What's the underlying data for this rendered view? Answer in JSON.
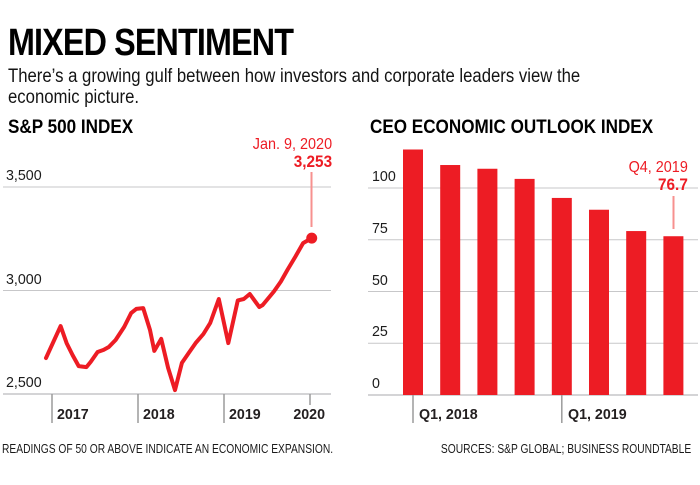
{
  "header": {
    "title": "MIXED SENTIMENT",
    "subtitle_line1": "There’s a growing gulf between how investors and corporate leaders view the",
    "subtitle_line2": "economic picture."
  },
  "footer": {
    "note": "READINGS OF 50 OR ABOVE INDICATE AN ECONOMIC EXPANSION.",
    "sources": "SOURCES: S&P GLOBAL; BUSINESS ROUNDTABLE"
  },
  "colors": {
    "accent_red": "#ed1c24",
    "pointer_red": "#f7918f",
    "gridline": "#c7c7c9",
    "axis_gray": "#9b9b9b",
    "text_black": "#0f0f0f"
  },
  "chart_data": [
    {
      "type": "line",
      "title": "S&P 500 INDEX",
      "annotation": {
        "label": "Jan. 9, 2020",
        "value": "3,253"
      },
      "ylim": [
        2500,
        3500
      ],
      "grid": "horizontal",
      "yticks": [
        {
          "value": 3500,
          "label": "3,500"
        },
        {
          "value": 3000,
          "label": "3,000"
        },
        {
          "value": 2500,
          "label": "2,500"
        }
      ],
      "xticks": [
        {
          "year": 2017,
          "label": "2017",
          "tick": "long",
          "align": "right"
        },
        {
          "year": 2018,
          "label": "2018",
          "tick": "long",
          "align": "right"
        },
        {
          "year": 2019,
          "label": "2019",
          "tick": "long",
          "align": "right"
        },
        {
          "year": 2020,
          "label": "2020",
          "tick": "short",
          "align": "center"
        }
      ],
      "x": [
        2016.93,
        2017.1,
        2017.17,
        2017.24,
        2017.31,
        2017.4,
        2017.45,
        2017.53,
        2017.6,
        2017.66,
        2017.74,
        2017.84,
        2017.92,
        2017.98,
        2018.06,
        2018.14,
        2018.19,
        2018.27,
        2018.35,
        2018.43,
        2018.51,
        2018.59,
        2018.67,
        2018.76,
        2018.84,
        2018.94,
        2019.05,
        2019.16,
        2019.23,
        2019.3,
        2019.41,
        2019.45,
        2019.58,
        2019.66,
        2019.74,
        2019.83,
        2019.92,
        2020.02
      ],
      "values": [
        2674,
        2828,
        2746,
        2688,
        2635,
        2630,
        2655,
        2703,
        2713,
        2727,
        2761,
        2824,
        2891,
        2911,
        2915,
        2809,
        2708,
        2766,
        2626,
        2519,
        2650,
        2698,
        2746,
        2790,
        2843,
        2959,
        2746,
        2952,
        2959,
        2983,
        2920,
        2930,
        2995,
        3043,
        3101,
        3164,
        3229,
        3253
      ],
      "end_value": 3253
    },
    {
      "type": "bar",
      "title": "CEO ECONOMIC OUTLOOK INDEX",
      "annotation": {
        "label": "Q4, 2019",
        "value": "76.7"
      },
      "ylim": [
        0,
        118.6
      ],
      "yticks": [
        {
          "value": 100,
          "label": "100"
        },
        {
          "value": 75,
          "label": "75"
        },
        {
          "value": 50,
          "label": "50"
        },
        {
          "value": 25,
          "label": "25"
        },
        {
          "value": 0,
          "label": "0"
        }
      ],
      "categories": [
        "Q1 2018",
        "Q2 2018",
        "Q3 2018",
        "Q4 2018",
        "Q1 2019",
        "Q2 2019",
        "Q3 2019",
        "Q4 2019"
      ],
      "values": [
        118.6,
        111.1,
        109.3,
        104.4,
        95.2,
        89.5,
        79.2,
        76.7
      ],
      "xticks": [
        {
          "index": 0,
          "label": "Q1, 2018"
        },
        {
          "index": 4,
          "label": "Q1, 2019"
        }
      ]
    }
  ]
}
